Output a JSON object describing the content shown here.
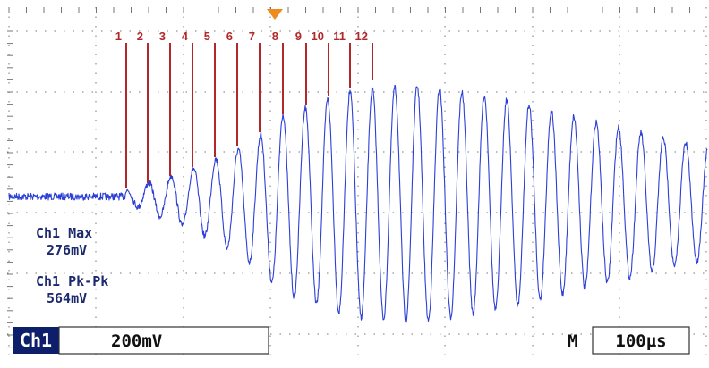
{
  "markers": [
    "1",
    "2",
    "3",
    "4",
    "5",
    "6",
    "7",
    "8",
    "9",
    "10",
    "11",
    "12"
  ],
  "readouts": [
    {
      "label": "Ch1 Max",
      "value": "276mV"
    },
    {
      "label": "Ch1 Pk-Pk",
      "value": "564mV"
    }
  ],
  "channel": {
    "name": "Ch1",
    "scale": "200mV"
  },
  "timebase": {
    "label": "M",
    "scale": "100µs"
  }
}
